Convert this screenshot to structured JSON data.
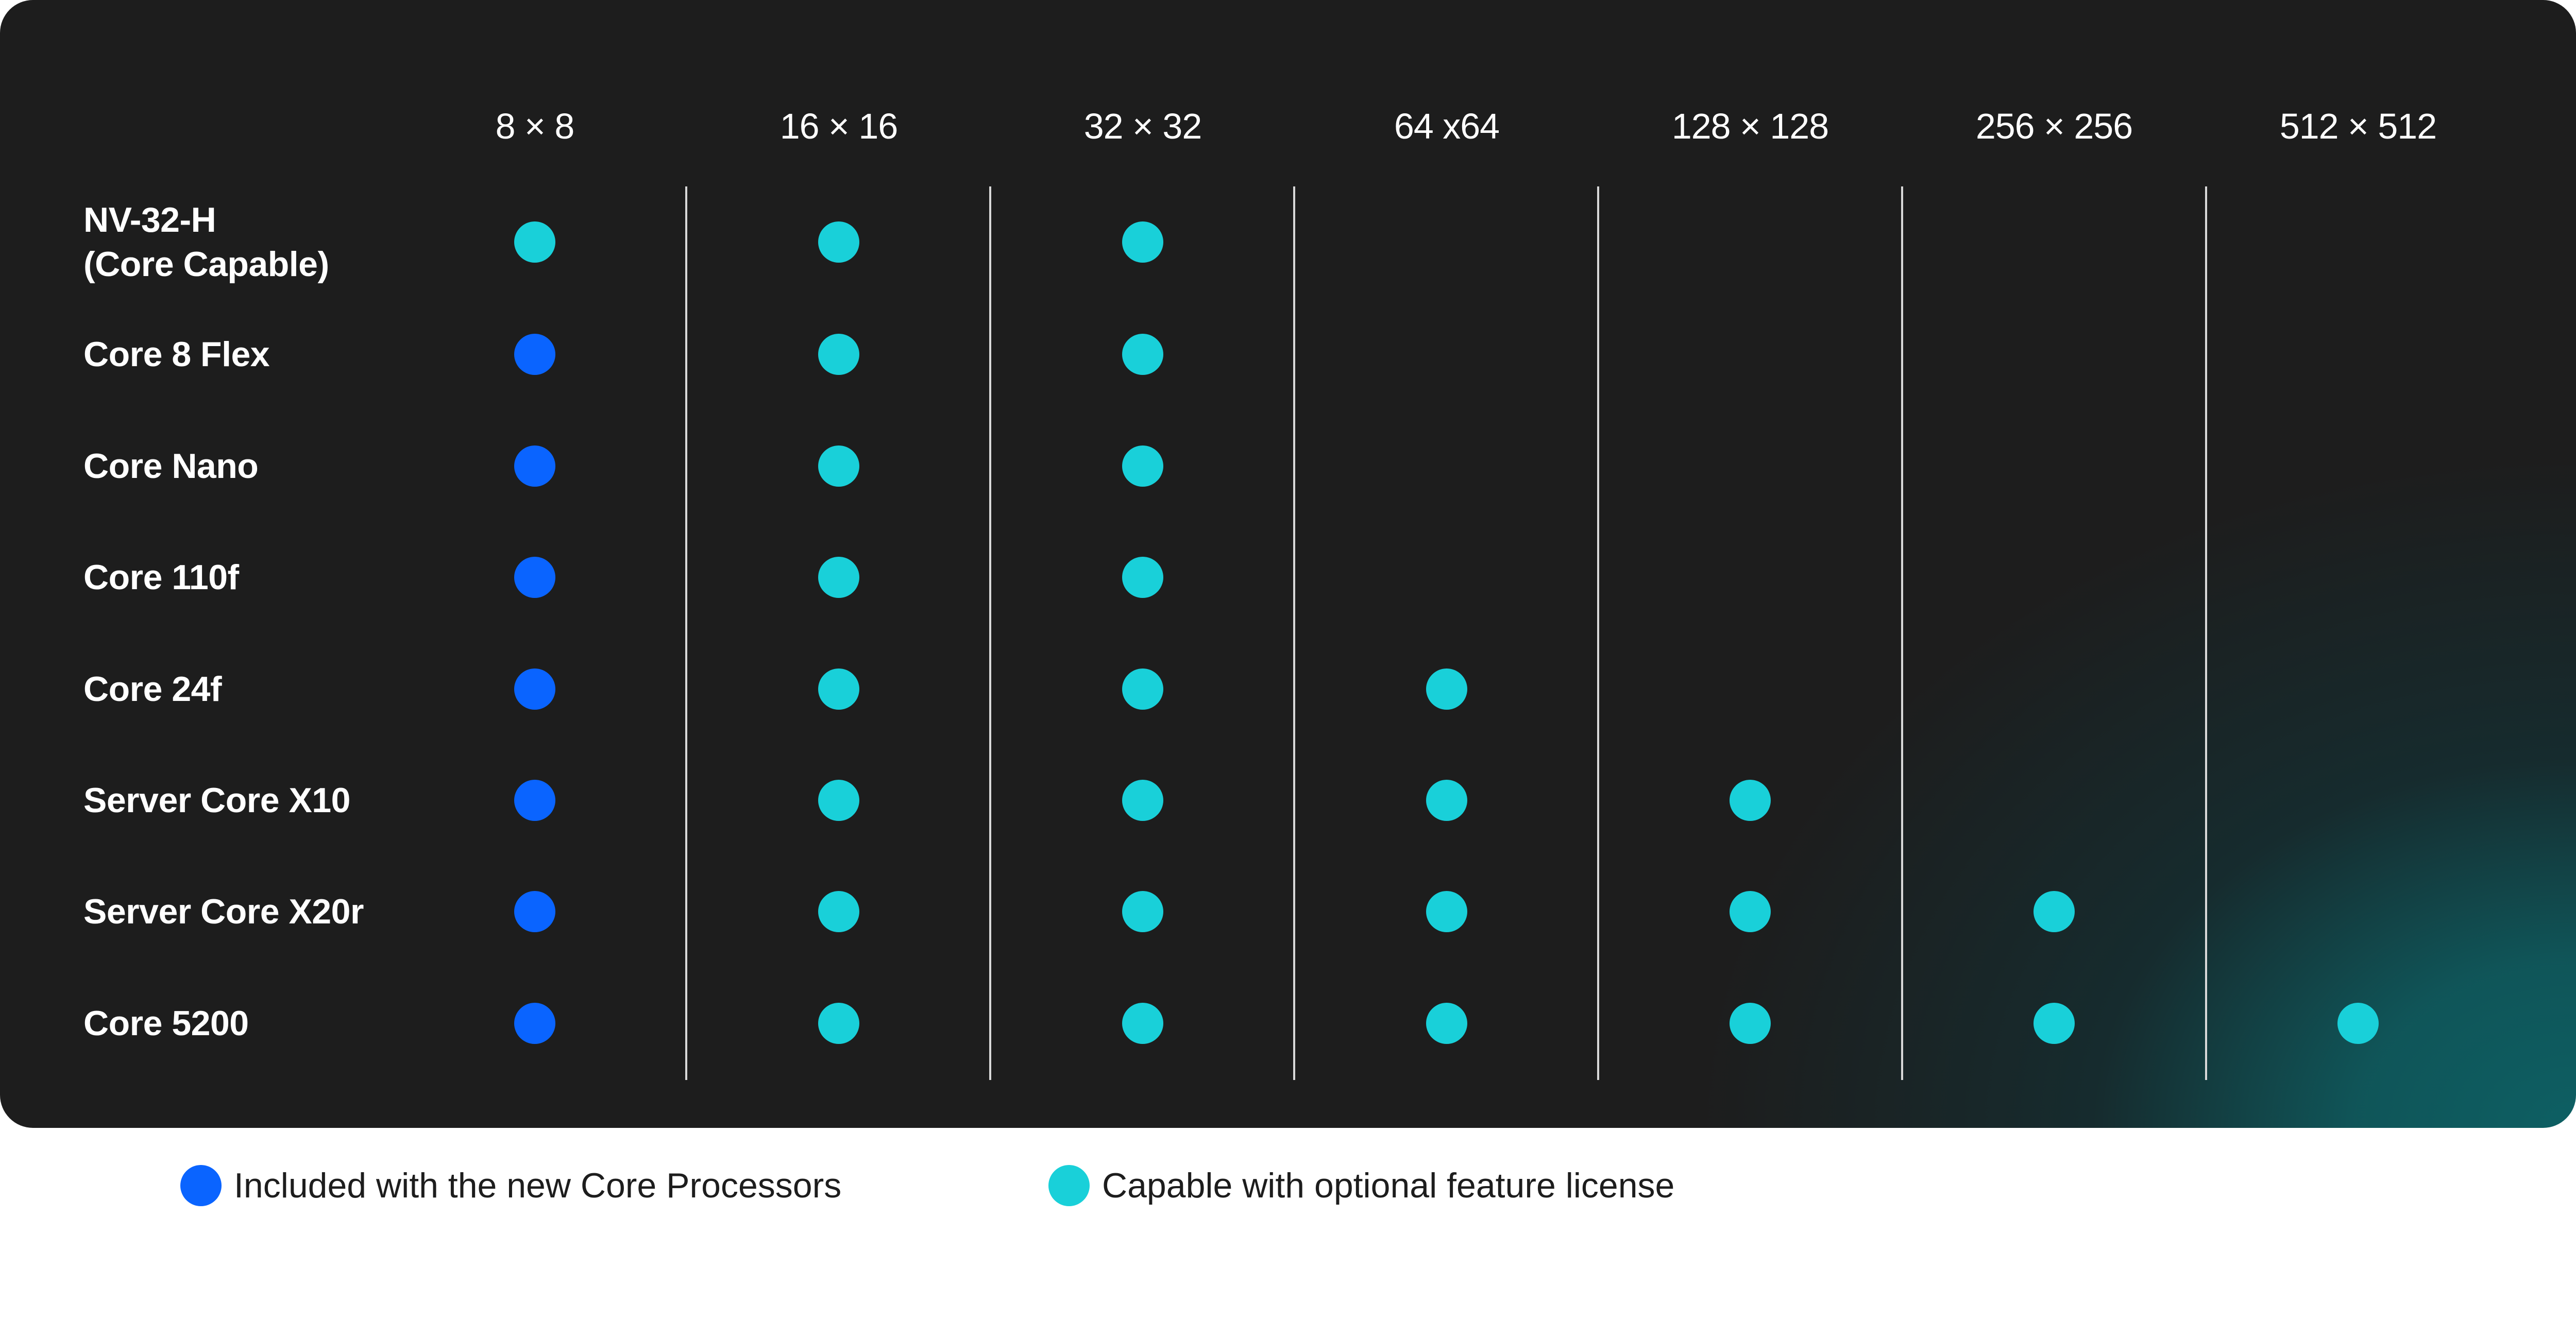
{
  "columns": [
    "8 × 8",
    "16 × 16",
    "32 × 32",
    "64 x64",
    "128 × 128",
    "256 × 256",
    "512 × 512"
  ],
  "rows": [
    {
      "label_line1": "NV-32-H",
      "label_line2": "(Core Capable)",
      "cells": [
        "capable",
        "capable",
        "capable",
        "",
        "",
        "",
        ""
      ]
    },
    {
      "label_line1": "Core 8 Flex",
      "label_line2": "",
      "cells": [
        "included",
        "capable",
        "capable",
        "",
        "",
        "",
        ""
      ]
    },
    {
      "label_line1": "Core Nano",
      "label_line2": "",
      "cells": [
        "included",
        "capable",
        "capable",
        "",
        "",
        "",
        ""
      ]
    },
    {
      "label_line1": "Core 110f",
      "label_line2": "",
      "cells": [
        "included",
        "capable",
        "capable",
        "",
        "",
        "",
        ""
      ]
    },
    {
      "label_line1": "Core 24f",
      "label_line2": "",
      "cells": [
        "included",
        "capable",
        "capable",
        "capable",
        "",
        "",
        ""
      ]
    },
    {
      "label_line1": "Server Core X10",
      "label_line2": "",
      "cells": [
        "included",
        "capable",
        "capable",
        "capable",
        "capable",
        "",
        ""
      ]
    },
    {
      "label_line1": "Server Core X20r",
      "label_line2": "",
      "cells": [
        "included",
        "capable",
        "capable",
        "capable",
        "capable",
        "capable",
        ""
      ]
    },
    {
      "label_line1": "Core 5200",
      "label_line2": "",
      "cells": [
        "included",
        "capable",
        "capable",
        "capable",
        "capable",
        "capable",
        "capable"
      ]
    }
  ],
  "legend": {
    "included": {
      "label": "Included with the new Core Processors",
      "color": "#0a64ff"
    },
    "capable": {
      "label": "Capable with optional feature license",
      "color": "#19d0d9"
    }
  },
  "colors": {
    "card_background": "#1d1d1d",
    "gradient_accent": "#0d5f63",
    "divider": "#d8d8d8",
    "included": "#0a64ff",
    "capable": "#19d0d9"
  }
}
